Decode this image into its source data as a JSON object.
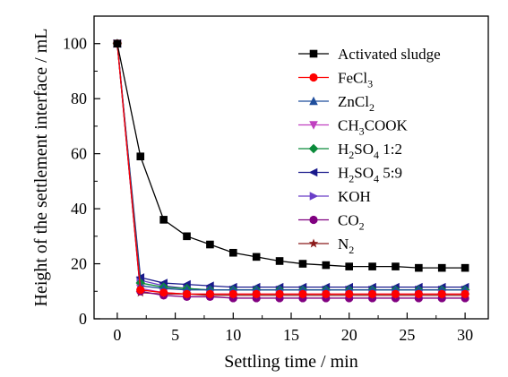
{
  "chart_data": {
    "type": "line",
    "xlabel": "Settling time / min",
    "ylabel": "Height of the settlement interface / mL",
    "xlim": [
      -2,
      32
    ],
    "ylim": [
      0,
      110
    ],
    "xticks": [
      0,
      5,
      10,
      15,
      20,
      25,
      30
    ],
    "yticks": [
      0,
      20,
      40,
      60,
      80,
      100
    ],
    "legend_position": "top-right",
    "series": [
      {
        "name": "Activated sludge",
        "color": "#000000",
        "marker": "square",
        "x": [
          0,
          2,
          4,
          6,
          8,
          10,
          12,
          14,
          16,
          18,
          20,
          22,
          24,
          26,
          28,
          30
        ],
        "y": [
          100,
          59,
          36,
          30,
          27,
          24,
          22.5,
          21,
          20,
          19.5,
          19,
          19,
          19,
          18.5,
          18.5,
          18.5
        ]
      },
      {
        "name": "FeCl3",
        "label_main": "FeCl",
        "label_sub": "3",
        "label_rest": "",
        "color": "#ff0000",
        "marker": "circle",
        "x": [
          0,
          2,
          4,
          6,
          8,
          10,
          12,
          14,
          16,
          18,
          20,
          22,
          24,
          26,
          28,
          30
        ],
        "y": [
          100,
          10.5,
          9.5,
          9,
          9,
          9,
          9,
          9,
          9,
          9,
          9,
          9,
          9,
          9,
          9,
          9
        ]
      },
      {
        "name": "ZnCl2",
        "label_main": "ZnCl",
        "label_sub": "2",
        "label_rest": "",
        "color": "#1f4e9c",
        "marker": "triangle-up",
        "x": [
          0,
          2,
          4,
          6,
          8,
          10,
          12,
          14,
          16,
          18,
          20,
          22,
          24,
          26,
          28,
          30
        ],
        "y": [
          100,
          12,
          11,
          10.5,
          10.5,
          10.5,
          10.5,
          10.5,
          10.5,
          10.5,
          10.5,
          10.5,
          10.5,
          10.5,
          10.5,
          10.5
        ]
      },
      {
        "name": "CH3COOK",
        "label_main": "CH",
        "label_sub": "3",
        "label_rest": "COOK",
        "color": "#c040c0",
        "marker": "triangle-down",
        "x": [
          0,
          2,
          4,
          6,
          8,
          10,
          12,
          14,
          16,
          18,
          20,
          22,
          24,
          26,
          28,
          30
        ],
        "y": [
          100,
          11,
          9.5,
          9,
          9,
          9,
          9,
          9,
          9,
          9,
          9,
          9,
          9,
          9,
          9,
          9
        ]
      },
      {
        "name": "H2SO4 1:2",
        "label_main": "H",
        "label_sub": "2",
        "label_rest": "SO",
        "label_sub2": "4",
        "label_rest2": " 1:2",
        "color": "#0a8a3a",
        "marker": "diamond",
        "x": [
          0,
          2,
          4,
          6,
          8,
          10,
          12,
          14,
          16,
          18,
          20,
          22,
          24,
          26,
          28,
          30
        ],
        "y": [
          100,
          13,
          11.5,
          11,
          10.5,
          10.5,
          10.5,
          10.5,
          10.5,
          10.5,
          10.5,
          10.5,
          10.5,
          10.5,
          10.5,
          10.5
        ]
      },
      {
        "name": "H2SO4 5:9",
        "label_main": "H",
        "label_sub": "2",
        "label_rest": "SO",
        "label_sub2": "4",
        "label_rest2": " 5:9",
        "color": "#1a1a8c",
        "marker": "triangle-left",
        "x": [
          0,
          2,
          4,
          6,
          8,
          10,
          12,
          14,
          16,
          18,
          20,
          22,
          24,
          26,
          28,
          30
        ],
        "y": [
          100,
          15,
          13,
          12.5,
          12,
          11.5,
          11.5,
          11.5,
          11.5,
          11.5,
          11.5,
          11.5,
          11.5,
          11.5,
          11.5,
          11.5
        ]
      },
      {
        "name": "KOH",
        "label_main": "KOH",
        "label_sub": "",
        "label_rest": "",
        "color": "#6a3fc8",
        "marker": "triangle-right",
        "x": [
          0,
          2,
          4,
          6,
          8,
          10,
          12,
          14,
          16,
          18,
          20,
          22,
          24,
          26,
          28,
          30
        ],
        "y": [
          100,
          14,
          12,
          11,
          10.5,
          10.5,
          10.5,
          10.5,
          10.5,
          10.5,
          10.5,
          10.5,
          10.5,
          10.5,
          10.5,
          10.5
        ]
      },
      {
        "name": "CO2",
        "label_main": "CO",
        "label_sub": "2",
        "label_rest": "",
        "color": "#800080",
        "marker": "circle",
        "x": [
          0,
          2,
          4,
          6,
          8,
          10,
          12,
          14,
          16,
          18,
          20,
          22,
          24,
          26,
          28,
          30
        ],
        "y": [
          100,
          10,
          8.5,
          8,
          8,
          7.5,
          7.5,
          7.5,
          7.5,
          7.5,
          7.5,
          7.5,
          7.5,
          7.5,
          7.5,
          7.5
        ]
      },
      {
        "name": "N2",
        "label_main": "N",
        "label_sub": "2",
        "label_rest": "",
        "color": "#8b1a1a",
        "marker": "star",
        "x": [
          0,
          2,
          4,
          6,
          8,
          10,
          12,
          14,
          16,
          18,
          20,
          22,
          24,
          26,
          28,
          30
        ],
        "y": [
          100,
          9.5,
          9,
          9,
          8.5,
          8.5,
          8.5,
          8.5,
          8.5,
          8.5,
          8.5,
          8.5,
          8.5,
          8.5,
          8.5,
          8.5
        ]
      }
    ]
  }
}
